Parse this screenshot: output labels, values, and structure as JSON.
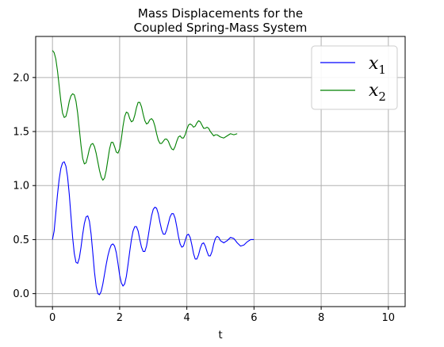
{
  "chart_data": {
    "type": "line",
    "title_line1": "Mass Displacements for the",
    "title_line2": "Coupled Spring-Mass System",
    "xlabel": "t",
    "ylabel": "",
    "xlim": [
      -0.5,
      10.5
    ],
    "ylim": [
      -0.12,
      2.38
    ],
    "xticks": [
      0,
      2,
      4,
      6,
      8,
      10
    ],
    "xtick_labels": [
      "0",
      "2",
      "4",
      "6",
      "8",
      "10"
    ],
    "yticks": [
      0.0,
      0.5,
      1.0,
      1.5,
      2.0
    ],
    "ytick_labels": [
      "0.0",
      "0.5",
      "1.0",
      "1.5",
      "2.0"
    ],
    "grid": true,
    "legend_position": "top-right",
    "series": [
      {
        "name": "x",
        "subscript": "1",
        "color": "#0000ff",
        "points": [
          [
            0,
            0.5
          ],
          [
            0.05,
            0.58
          ],
          [
            0.1,
            0.75
          ],
          [
            0.15,
            0.92
          ],
          [
            0.2,
            1.06
          ],
          [
            0.25,
            1.16
          ],
          [
            0.3,
            1.21
          ],
          [
            0.35,
            1.22
          ],
          [
            0.4,
            1.18
          ],
          [
            0.45,
            1.08
          ],
          [
            0.5,
            0.92
          ],
          [
            0.55,
            0.72
          ],
          [
            0.6,
            0.52
          ],
          [
            0.65,
            0.37
          ],
          [
            0.7,
            0.29
          ],
          [
            0.75,
            0.28
          ],
          [
            0.8,
            0.33
          ],
          [
            0.85,
            0.43
          ],
          [
            0.9,
            0.55
          ],
          [
            0.95,
            0.65
          ],
          [
            1.0,
            0.71
          ],
          [
            1.05,
            0.72
          ],
          [
            1.1,
            0.67
          ],
          [
            1.15,
            0.55
          ],
          [
            1.2,
            0.38
          ],
          [
            1.25,
            0.2
          ],
          [
            1.3,
            0.07
          ],
          [
            1.35,
            0.0
          ],
          [
            1.4,
            -0.01
          ],
          [
            1.45,
            0.02
          ],
          [
            1.5,
            0.09
          ],
          [
            1.55,
            0.18
          ],
          [
            1.6,
            0.27
          ],
          [
            1.65,
            0.35
          ],
          [
            1.7,
            0.41
          ],
          [
            1.75,
            0.45
          ],
          [
            1.8,
            0.46
          ],
          [
            1.85,
            0.44
          ],
          [
            1.9,
            0.38
          ],
          [
            1.95,
            0.28
          ],
          [
            2.0,
            0.17
          ],
          [
            2.05,
            0.1
          ],
          [
            2.1,
            0.07
          ],
          [
            2.15,
            0.09
          ],
          [
            2.2,
            0.16
          ],
          [
            2.25,
            0.27
          ],
          [
            2.3,
            0.39
          ],
          [
            2.35,
            0.5
          ],
          [
            2.4,
            0.58
          ],
          [
            2.45,
            0.62
          ],
          [
            2.5,
            0.62
          ],
          [
            2.55,
            0.58
          ],
          [
            2.6,
            0.5
          ],
          [
            2.65,
            0.43
          ],
          [
            2.7,
            0.39
          ],
          [
            2.75,
            0.39
          ],
          [
            2.8,
            0.44
          ],
          [
            2.85,
            0.53
          ],
          [
            2.9,
            0.63
          ],
          [
            2.95,
            0.72
          ],
          [
            3.0,
            0.78
          ],
          [
            3.05,
            0.8
          ],
          [
            3.1,
            0.79
          ],
          [
            3.15,
            0.74
          ],
          [
            3.2,
            0.66
          ],
          [
            3.25,
            0.59
          ],
          [
            3.3,
            0.55
          ],
          [
            3.35,
            0.55
          ],
          [
            3.4,
            0.59
          ],
          [
            3.45,
            0.65
          ],
          [
            3.5,
            0.71
          ],
          [
            3.55,
            0.74
          ],
          [
            3.6,
            0.74
          ],
          [
            3.65,
            0.7
          ],
          [
            3.7,
            0.62
          ],
          [
            3.75,
            0.53
          ],
          [
            3.8,
            0.46
          ],
          [
            3.85,
            0.43
          ],
          [
            3.9,
            0.44
          ],
          [
            3.95,
            0.49
          ],
          [
            4.0,
            0.54
          ],
          [
            4.05,
            0.55
          ],
          [
            4.1,
            0.52
          ],
          [
            4.15,
            0.45
          ],
          [
            4.2,
            0.37
          ],
          [
            4.25,
            0.32
          ],
          [
            4.3,
            0.32
          ],
          [
            4.35,
            0.36
          ],
          [
            4.4,
            0.42
          ],
          [
            4.45,
            0.46
          ],
          [
            4.5,
            0.47
          ],
          [
            4.55,
            0.44
          ],
          [
            4.6,
            0.39
          ],
          [
            4.65,
            0.35
          ],
          [
            4.7,
            0.35
          ],
          [
            4.75,
            0.39
          ],
          [
            4.8,
            0.46
          ],
          [
            4.85,
            0.51
          ],
          [
            4.9,
            0.53
          ],
          [
            4.95,
            0.52
          ],
          [
            5.0,
            0.49
          ],
          [
            5.1,
            0.47
          ],
          [
            5.2,
            0.49
          ],
          [
            5.3,
            0.52
          ],
          [
            5.4,
            0.51
          ],
          [
            5.5,
            0.47
          ],
          [
            5.6,
            0.44
          ],
          [
            5.7,
            0.45
          ],
          [
            5.8,
            0.48
          ],
          [
            5.9,
            0.5
          ],
          [
            6.0,
            0.5
          ]
        ]
      },
      {
        "name": "x",
        "subscript": "2",
        "color": "#008000",
        "points": [
          [
            0,
            2.25
          ],
          [
            0.05,
            2.23
          ],
          [
            0.1,
            2.17
          ],
          [
            0.15,
            2.06
          ],
          [
            0.2,
            1.92
          ],
          [
            0.25,
            1.78
          ],
          [
            0.3,
            1.67
          ],
          [
            0.35,
            1.63
          ],
          [
            0.4,
            1.64
          ],
          [
            0.45,
            1.7
          ],
          [
            0.5,
            1.78
          ],
          [
            0.55,
            1.83
          ],
          [
            0.6,
            1.85
          ],
          [
            0.65,
            1.84
          ],
          [
            0.7,
            1.78
          ],
          [
            0.75,
            1.67
          ],
          [
            0.8,
            1.52
          ],
          [
            0.85,
            1.37
          ],
          [
            0.9,
            1.25
          ],
          [
            0.95,
            1.2
          ],
          [
            1.0,
            1.21
          ],
          [
            1.05,
            1.27
          ],
          [
            1.1,
            1.34
          ],
          [
            1.15,
            1.38
          ],
          [
            1.2,
            1.39
          ],
          [
            1.25,
            1.36
          ],
          [
            1.3,
            1.3
          ],
          [
            1.35,
            1.22
          ],
          [
            1.4,
            1.14
          ],
          [
            1.45,
            1.08
          ],
          [
            1.5,
            1.05
          ],
          [
            1.55,
            1.07
          ],
          [
            1.6,
            1.14
          ],
          [
            1.65,
            1.24
          ],
          [
            1.7,
            1.34
          ],
          [
            1.75,
            1.4
          ],
          [
            1.8,
            1.4
          ],
          [
            1.85,
            1.36
          ],
          [
            1.9,
            1.31
          ],
          [
            1.95,
            1.3
          ],
          [
            2.0,
            1.34
          ],
          [
            2.05,
            1.43
          ],
          [
            2.1,
            1.55
          ],
          [
            2.15,
            1.64
          ],
          [
            2.2,
            1.68
          ],
          [
            2.25,
            1.67
          ],
          [
            2.3,
            1.62
          ],
          [
            2.35,
            1.59
          ],
          [
            2.4,
            1.6
          ],
          [
            2.45,
            1.65
          ],
          [
            2.5,
            1.72
          ],
          [
            2.55,
            1.77
          ],
          [
            2.6,
            1.77
          ],
          [
            2.65,
            1.73
          ],
          [
            2.7,
            1.66
          ],
          [
            2.75,
            1.6
          ],
          [
            2.8,
            1.57
          ],
          [
            2.85,
            1.58
          ],
          [
            2.9,
            1.61
          ],
          [
            2.95,
            1.62
          ],
          [
            3.0,
            1.6
          ],
          [
            3.05,
            1.55
          ],
          [
            3.1,
            1.48
          ],
          [
            3.15,
            1.42
          ],
          [
            3.2,
            1.39
          ],
          [
            3.25,
            1.39
          ],
          [
            3.3,
            1.41
          ],
          [
            3.35,
            1.43
          ],
          [
            3.4,
            1.43
          ],
          [
            3.45,
            1.41
          ],
          [
            3.5,
            1.37
          ],
          [
            3.55,
            1.34
          ],
          [
            3.6,
            1.33
          ],
          [
            3.65,
            1.36
          ],
          [
            3.7,
            1.41
          ],
          [
            3.75,
            1.45
          ],
          [
            3.8,
            1.46
          ],
          [
            3.85,
            1.44
          ],
          [
            3.9,
            1.44
          ],
          [
            3.95,
            1.47
          ],
          [
            4.0,
            1.52
          ],
          [
            4.05,
            1.56
          ],
          [
            4.1,
            1.57
          ],
          [
            4.15,
            1.56
          ],
          [
            4.2,
            1.54
          ],
          [
            4.25,
            1.55
          ],
          [
            4.3,
            1.58
          ],
          [
            4.35,
            1.6
          ],
          [
            4.4,
            1.59
          ],
          [
            4.45,
            1.56
          ],
          [
            4.5,
            1.53
          ],
          [
            4.55,
            1.53
          ],
          [
            4.6,
            1.54
          ],
          [
            4.65,
            1.53
          ],
          [
            4.7,
            1.5
          ],
          [
            4.75,
            1.48
          ],
          [
            4.8,
            1.46
          ],
          [
            4.85,
            1.47
          ],
          [
            4.9,
            1.47
          ],
          [
            4.95,
            1.46
          ],
          [
            5.0,
            1.45
          ],
          [
            5.1,
            1.44
          ],
          [
            5.2,
            1.46
          ],
          [
            5.3,
            1.48
          ],
          [
            5.4,
            1.47
          ],
          [
            5.5,
            1.48
          ]
        ]
      }
    ]
  }
}
